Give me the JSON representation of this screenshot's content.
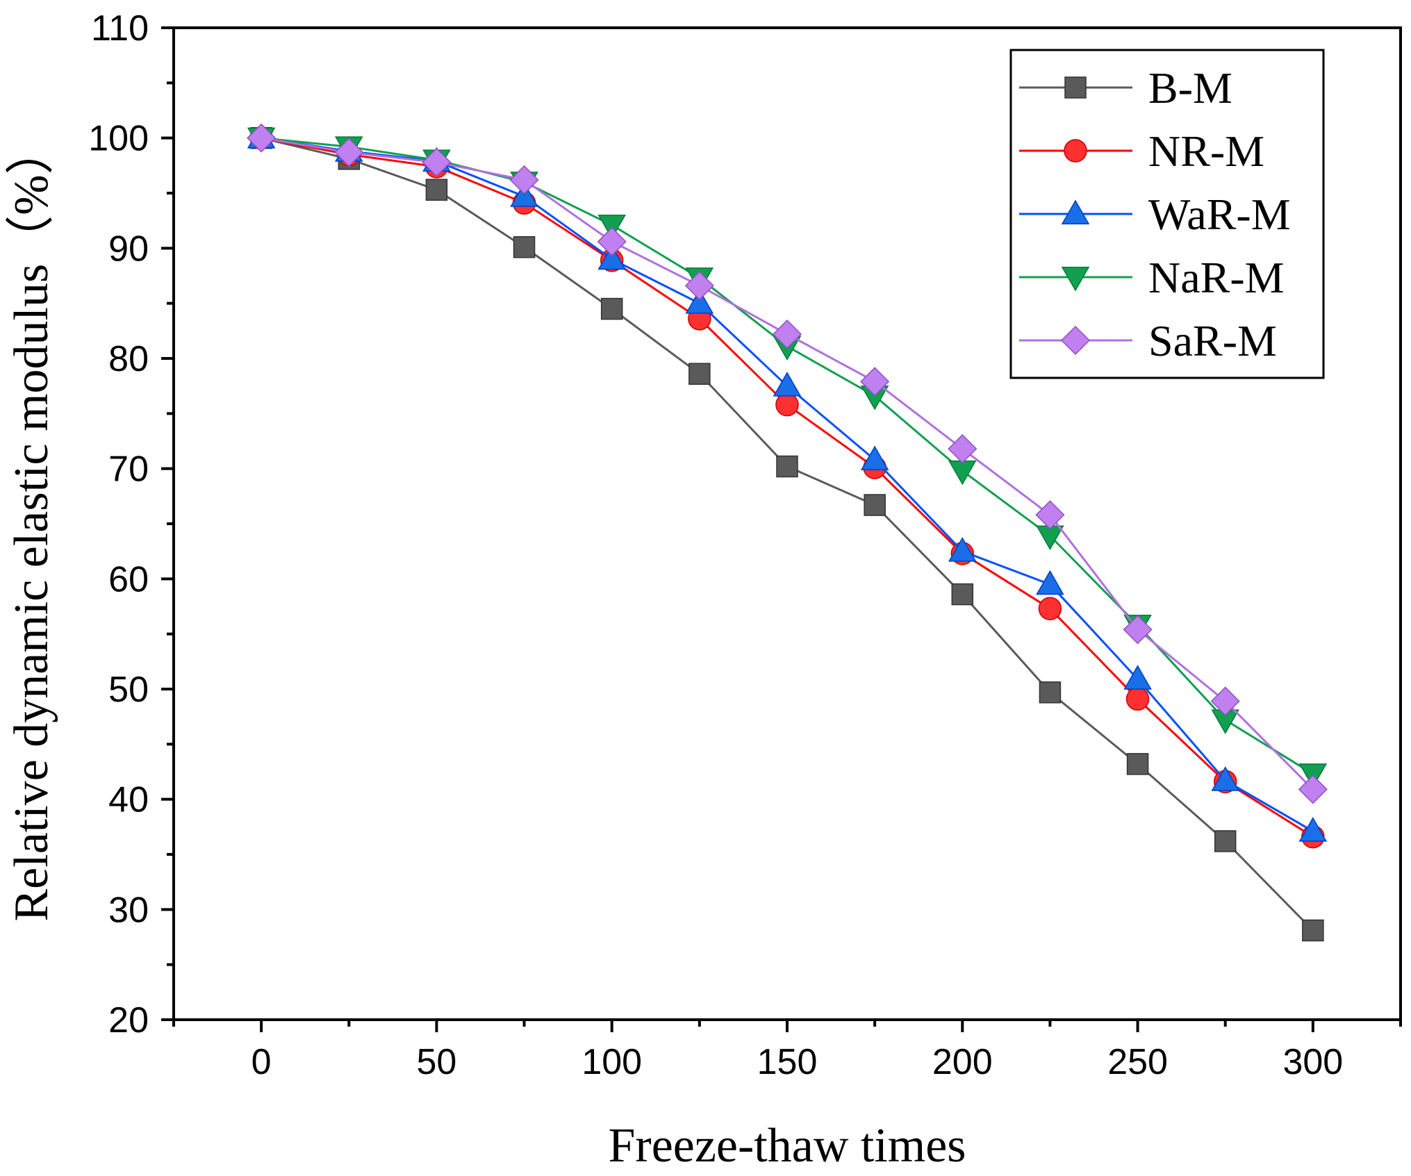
{
  "chart_data": {
    "type": "line",
    "title": "",
    "xlabel": "Freeze-thaw times",
    "ylabel": "Relative dynamic elastic modulus（%）",
    "xlim": [
      -25,
      325
    ],
    "ylim": [
      20,
      110
    ],
    "x_ticks": [
      0,
      50,
      100,
      150,
      200,
      250,
      300
    ],
    "y_ticks": [
      20,
      30,
      40,
      50,
      60,
      70,
      80,
      90,
      100,
      110
    ],
    "x_tick_labels": [
      "0",
      "50",
      "100",
      "150",
      "200",
      "250",
      "300"
    ],
    "y_tick_labels": [
      "20",
      "30",
      "40",
      "50",
      "60",
      "70",
      "80",
      "90",
      "100",
      "110"
    ],
    "grid": false,
    "legend_position": "top-right",
    "x": [
      0,
      25,
      50,
      75,
      100,
      125,
      150,
      175,
      200,
      225,
      250,
      275,
      300
    ],
    "series": [
      {
        "name": "B-M",
        "marker": "square",
        "color": "#5a5a5a",
        "line_color": "#5a5a5a",
        "values": [
          100,
          98.1,
          95.3,
          90.1,
          84.5,
          78.6,
          70.2,
          66.7,
          58.6,
          49.7,
          43.2,
          36.2,
          28.1
        ]
      },
      {
        "name": "NR-M",
        "marker": "circle",
        "color": "#ff3030",
        "line_color": "#ff0000",
        "values": [
          100,
          98.5,
          97.4,
          94.1,
          88.9,
          83.6,
          75.8,
          70.1,
          62.3,
          57.3,
          49.1,
          41.6,
          36.6
        ]
      },
      {
        "name": "WaR-M",
        "marker": "triangle-up",
        "color": "#1a6ee8",
        "line_color": "#0050ff",
        "values": [
          100,
          98.8,
          97.9,
          94.7,
          89.0,
          85.0,
          77.5,
          70.8,
          62.5,
          59.5,
          50.9,
          41.7,
          37.1
        ]
      },
      {
        "name": "NaR-M",
        "marker": "triangle-down",
        "color": "#10a050",
        "line_color": "#10a050",
        "values": [
          100,
          99.2,
          98.0,
          96.0,
          92.1,
          87.3,
          81.1,
          76.6,
          69.8,
          63.9,
          55.8,
          47.2,
          42.3
        ]
      },
      {
        "name": "SaR-M",
        "marker": "diamond",
        "color": "#c080f0",
        "line_color": "#b070e0",
        "values": [
          100,
          98.7,
          97.8,
          96.2,
          90.6,
          86.6,
          82.2,
          77.9,
          71.8,
          65.8,
          55.4,
          48.9,
          40.9
        ]
      }
    ]
  }
}
